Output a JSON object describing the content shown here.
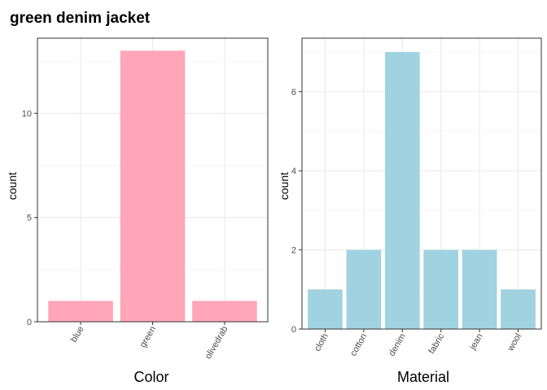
{
  "chart_data": [
    {
      "type": "bar",
      "title": "green denim jacket",
      "categories": [
        "blue",
        "green",
        "olivedrab"
      ],
      "values": [
        1,
        13,
        1
      ],
      "xlabel": "Color",
      "ylabel": "count",
      "ylim": [
        0,
        13.6
      ],
      "yticks": [
        0,
        5,
        10
      ],
      "bar_color": "#ffa6b8",
      "grid": true
    },
    {
      "type": "bar",
      "categories": [
        "cloth",
        "cotton",
        "denim",
        "fabric",
        "jean",
        "wool"
      ],
      "values": [
        1,
        2,
        7,
        2,
        2,
        1
      ],
      "xlabel": "Material",
      "ylabel": "count",
      "ylim": [
        0,
        7.35
      ],
      "yticks": [
        0,
        2,
        4,
        6
      ],
      "bar_color": "#a1d2e0",
      "grid": true
    }
  ]
}
